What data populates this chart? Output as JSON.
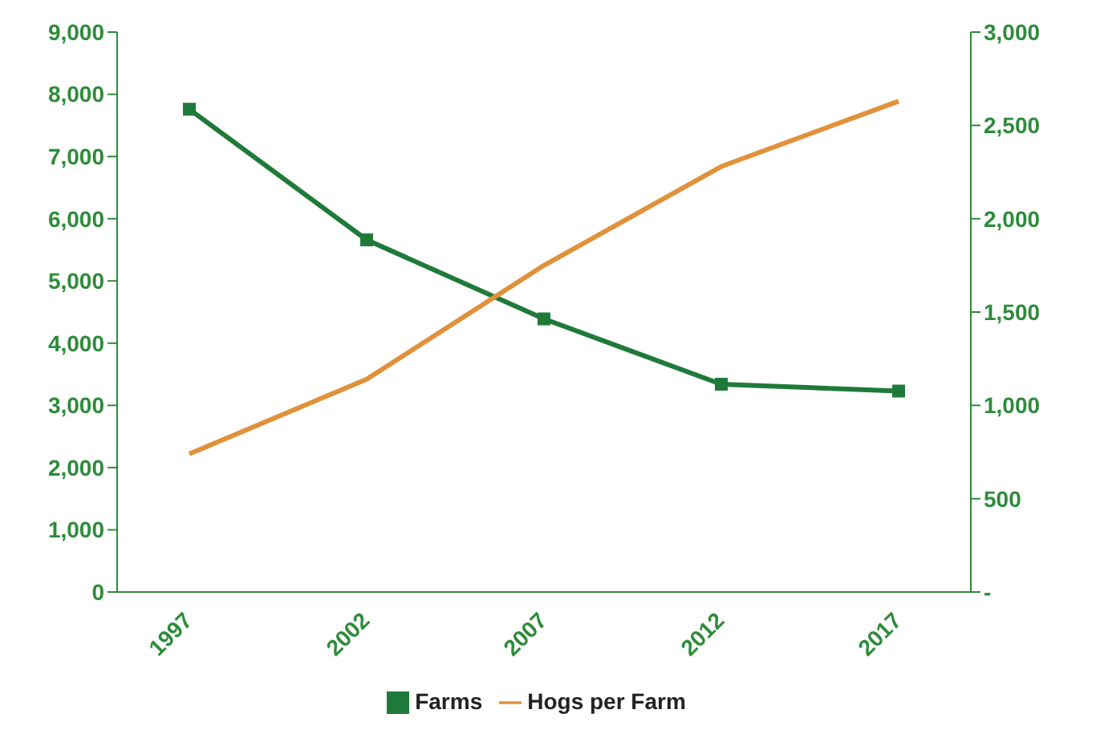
{
  "chart_data": {
    "type": "line",
    "categories": [
      "1997",
      "2002",
      "2007",
      "2012",
      "2017"
    ],
    "series": [
      {
        "name": "Farms",
        "color": "#1f7a3a",
        "marker": "square",
        "values": [
          7760,
          5660,
          4390,
          3340,
          3230
        ]
      },
      {
        "name": "Hogs per Farm",
        "color": "#e0913a",
        "marker": "none",
        "axis": "y2",
        "values": [
          740,
          1140,
          1750,
          2280,
          2630
        ]
      }
    ],
    "ylim": [
      0,
      9000
    ],
    "yticks": [
      {
        "value": 0,
        "label": "0"
      },
      {
        "value": 1000,
        "label": "1,000"
      },
      {
        "value": 2000,
        "label": "2,000"
      },
      {
        "value": 3000,
        "label": "3,000"
      },
      {
        "value": 4000,
        "label": "4,000"
      },
      {
        "value": 5000,
        "label": "5,000"
      },
      {
        "value": 6000,
        "label": "6,000"
      },
      {
        "value": 7000,
        "label": "7,000"
      },
      {
        "value": 8000,
        "label": "8,000"
      },
      {
        "value": 9000,
        "label": "9,000"
      }
    ],
    "y2lim": [
      0,
      3000
    ],
    "y2ticks": [
      {
        "value": 0,
        "label": "-"
      },
      {
        "value": 500,
        "label": "500"
      },
      {
        "value": 1000,
        "label": "1,000"
      },
      {
        "value": 1500,
        "label": "1,500"
      },
      {
        "value": 2000,
        "label": "2,000"
      },
      {
        "value": 2500,
        "label": "2,500"
      },
      {
        "value": 3000,
        "label": "3,000"
      }
    ],
    "legend": "bottom",
    "grid": false
  }
}
